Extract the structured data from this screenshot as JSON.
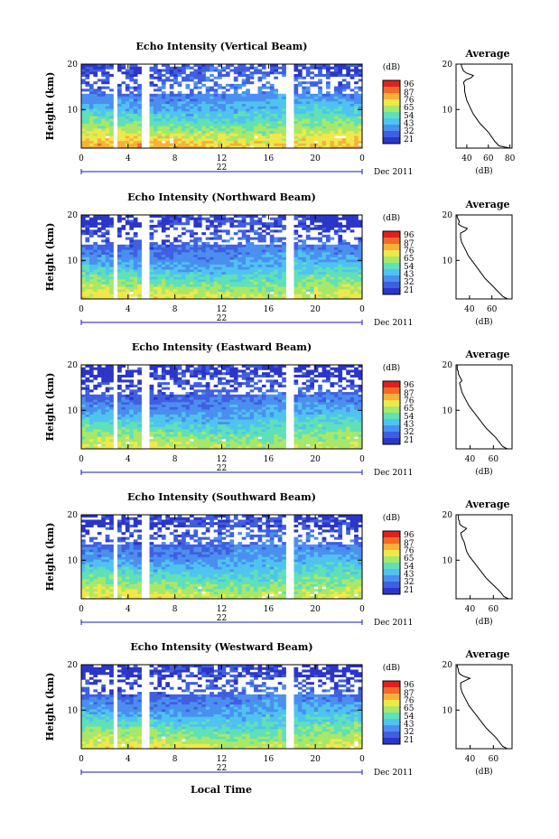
{
  "figure": {
    "date_label": "Dec 2011",
    "day_label": "22",
    "xlabel": "Local Time",
    "ylabel": "Height (km)",
    "colorbar_unit": "(dB)",
    "colorbar_ticks": [
      "96",
      "87",
      "76",
      "65",
      "54",
      "43",
      "32",
      "21"
    ],
    "profile_title": "Average",
    "profile_xlabel": "(dB)"
  },
  "colors": {
    "scale": [
      "#2b36c8",
      "#3f5fe0",
      "#4a8ff0",
      "#4fc3f0",
      "#5fe0b8",
      "#a8e868",
      "#f0e84a",
      "#f8b03a",
      "#f06a2a",
      "#e02020"
    ],
    "gap": "#ffffff",
    "axis": "#000000",
    "day_bar": "#1a1ab0"
  },
  "chart_data": [
    {
      "type": "heatmap",
      "title": "Echo Intensity (Vertical Beam)",
      "x_ticks": [
        "0",
        "4",
        "8",
        "12",
        "16",
        "20",
        "0"
      ],
      "y_ticks": [
        "20",
        "10"
      ],
      "xlim": [
        0,
        24
      ],
      "ylim": [
        1.5,
        20
      ],
      "color_range": [
        21,
        96
      ],
      "data_gaps_hours": [
        [
          2.6,
          3.1
        ],
        [
          5.0,
          5.7
        ],
        [
          17.6,
          18.1
        ]
      ],
      "mean_db_by_height": {
        "height_km": [
          2,
          6,
          10,
          14,
          18
        ],
        "db": [
          76,
          60,
          47,
          36,
          30
        ]
      },
      "profile": {
        "xlim": [
          30,
          82
        ],
        "x_ticks": [
          "40",
          "60",
          "80"
        ],
        "y_ticks": [
          "20",
          "10"
        ],
        "height_km": [
          1.5,
          2,
          3,
          4,
          5,
          6,
          7,
          8,
          9,
          10,
          11,
          12,
          13,
          14,
          15,
          16,
          16.5,
          17,
          17.5,
          18,
          18.5,
          19,
          19.5,
          20
        ],
        "db": [
          80,
          70,
          66,
          63,
          60,
          56,
          52,
          49,
          46,
          44,
          42,
          40,
          39,
          38,
          38,
          37,
          39,
          44,
          46,
          40,
          37,
          36,
          35,
          35
        ]
      }
    },
    {
      "type": "heatmap",
      "title": "Echo Intensity (Northward Beam)",
      "x_ticks": [
        "0",
        "4",
        "8",
        "12",
        "16",
        "20",
        "0"
      ],
      "y_ticks": [
        "20",
        "10"
      ],
      "xlim": [
        0,
        24
      ],
      "ylim": [
        1.5,
        20
      ],
      "color_range": [
        21,
        96
      ],
      "data_gaps_hours": [
        [
          2.6,
          3.1
        ],
        [
          5.0,
          5.7
        ],
        [
          17.6,
          18.1
        ]
      ],
      "mean_db_by_height": {
        "height_km": [
          2,
          6,
          10,
          14,
          18
        ],
        "db": [
          68,
          55,
          42,
          33,
          26
        ]
      },
      "profile": {
        "xlim": [
          28,
          78
        ],
        "x_ticks": [
          "40",
          "60"
        ],
        "y_ticks": [
          "20",
          "10"
        ],
        "height_km": [
          1.5,
          2,
          3,
          4,
          5,
          6,
          7,
          8,
          9,
          10,
          11,
          12,
          13,
          14,
          15,
          16,
          16.5,
          17,
          17.5,
          18,
          18.5,
          19,
          19.5,
          20
        ],
        "db": [
          74,
          70,
          66,
          62,
          58,
          54,
          51,
          48,
          45,
          42,
          39,
          37,
          35,
          33,
          32,
          32,
          36,
          38,
          33,
          30,
          31,
          30,
          29,
          29
        ]
      }
    },
    {
      "type": "heatmap",
      "title": "Echo Intensity (Eastward Beam)",
      "x_ticks": [
        "0",
        "4",
        "8",
        "12",
        "16",
        "20",
        "0"
      ],
      "y_ticks": [
        "20",
        "10"
      ],
      "xlim": [
        0,
        24
      ],
      "ylim": [
        1.5,
        20
      ],
      "color_range": [
        21,
        96
      ],
      "data_gaps_hours": [
        [
          2.6,
          3.1
        ],
        [
          5.0,
          5.7
        ],
        [
          17.6,
          18.1
        ]
      ],
      "mean_db_by_height": {
        "height_km": [
          2,
          6,
          10,
          14,
          18
        ],
        "db": [
          66,
          54,
          42,
          32,
          25
        ]
      },
      "profile": {
        "xlim": [
          28,
          76
        ],
        "x_ticks": [
          "40",
          "60"
        ],
        "y_ticks": [
          "20",
          "10"
        ],
        "height_km": [
          1.5,
          2,
          3,
          4,
          5,
          6,
          7,
          8,
          9,
          10,
          11,
          12,
          13,
          14,
          15,
          16,
          16.5,
          17,
          17.5,
          18,
          18.5,
          19,
          19.5,
          20
        ],
        "db": [
          72,
          68,
          65,
          62,
          58,
          54,
          51,
          48,
          45,
          42,
          39,
          37,
          35,
          33,
          32,
          31,
          33,
          32,
          31,
          30,
          30,
          29,
          29,
          29
        ]
      }
    },
    {
      "type": "heatmap",
      "title": "Echo Intensity (Southward Beam)",
      "x_ticks": [
        "0",
        "4",
        "8",
        "12",
        "16",
        "20",
        "0"
      ],
      "y_ticks": [
        "20",
        "10"
      ],
      "xlim": [
        0,
        24
      ],
      "ylim": [
        1.5,
        20
      ],
      "color_range": [
        21,
        96
      ],
      "data_gaps_hours": [
        [
          2.6,
          3.1
        ],
        [
          5.0,
          5.7
        ],
        [
          17.6,
          18.1
        ]
      ],
      "mean_db_by_height": {
        "height_km": [
          2,
          6,
          10,
          14,
          18
        ],
        "db": [
          67,
          55,
          43,
          34,
          27
        ]
      },
      "profile": {
        "xlim": [
          28,
          76
        ],
        "x_ticks": [
          "40",
          "60"
        ],
        "y_ticks": [
          "20",
          "10"
        ],
        "height_km": [
          1.5,
          2,
          3,
          4,
          5,
          6,
          7,
          8,
          9,
          10,
          11,
          12,
          13,
          14,
          15,
          16,
          16.5,
          17,
          17.5,
          18,
          18.5,
          19,
          19.5,
          20
        ],
        "db": [
          73,
          69,
          66,
          62,
          58,
          54,
          51,
          48,
          45,
          42,
          39,
          37,
          36,
          35,
          33,
          32,
          35,
          37,
          33,
          31,
          31,
          30,
          30,
          30
        ]
      }
    },
    {
      "type": "heatmap",
      "title": "Echo Intensity (Westward Beam)",
      "x_ticks": [
        "0",
        "4",
        "8",
        "12",
        "16",
        "20",
        "0"
      ],
      "y_ticks": [
        "20",
        "10"
      ],
      "xlim": [
        0,
        24
      ],
      "ylim": [
        1.5,
        20
      ],
      "color_range": [
        21,
        96
      ],
      "data_gaps_hours": [
        [
          2.6,
          3.1
        ],
        [
          5.0,
          5.7
        ],
        [
          17.6,
          18.1
        ]
      ],
      "mean_db_by_height": {
        "height_km": [
          2,
          6,
          10,
          14,
          18
        ],
        "db": [
          67,
          55,
          43,
          33,
          26
        ]
      },
      "profile": {
        "xlim": [
          28,
          76
        ],
        "x_ticks": [
          "40",
          "60"
        ],
        "y_ticks": [
          "20",
          "10"
        ],
        "height_km": [
          1.5,
          2,
          3,
          4,
          5,
          6,
          7,
          8,
          9,
          10,
          11,
          12,
          13,
          14,
          15,
          16,
          16.5,
          17,
          17.5,
          18,
          18.5,
          19,
          19.5,
          20
        ],
        "db": [
          72,
          68,
          65,
          62,
          58,
          54,
          51,
          48,
          45,
          42,
          39,
          37,
          35,
          33,
          32,
          32,
          36,
          40,
          34,
          31,
          30,
          30,
          29,
          29
        ]
      }
    }
  ]
}
